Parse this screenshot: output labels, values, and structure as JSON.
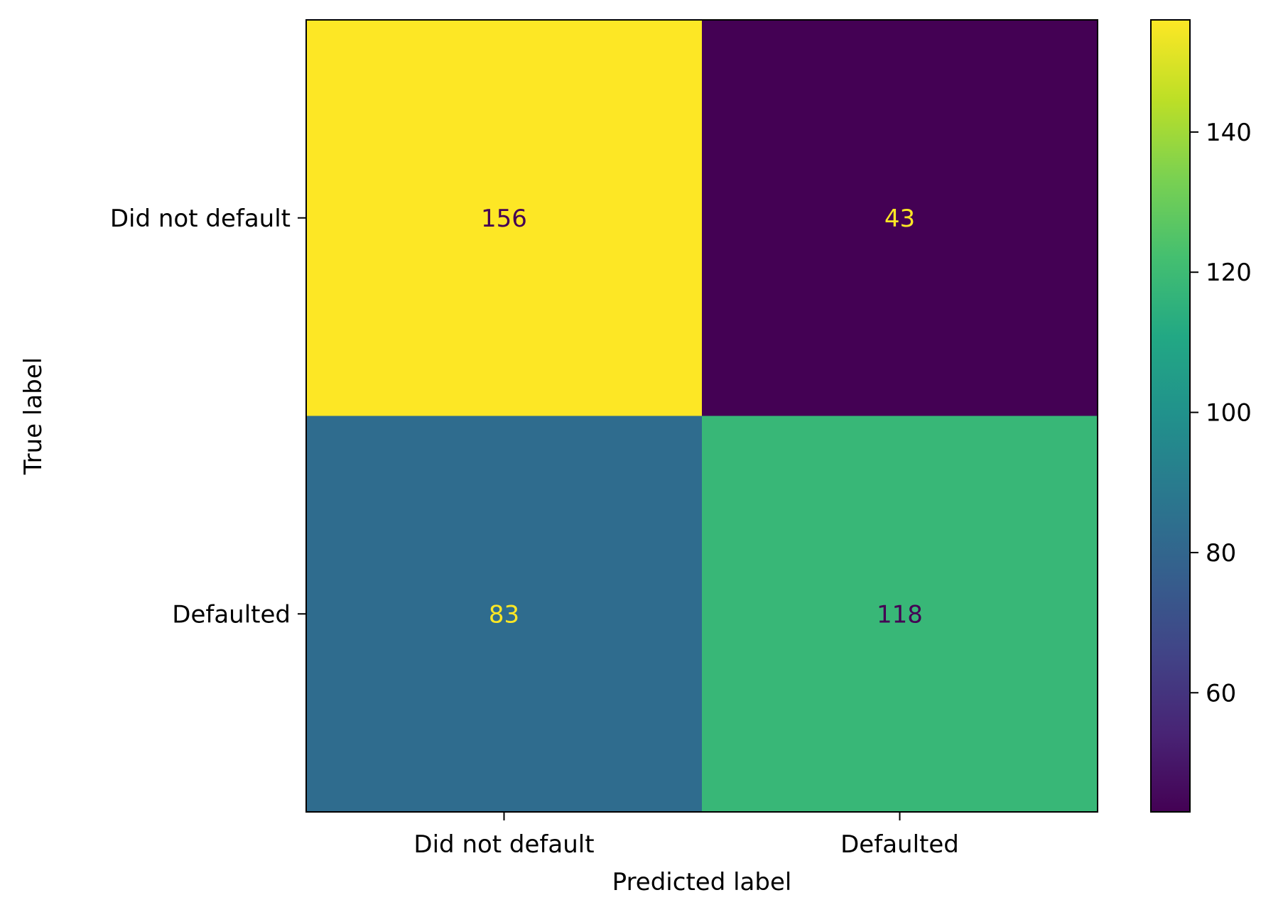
{
  "chart_data": {
    "type": "heatmap",
    "title": "",
    "xlabel": "Predicted label",
    "ylabel": "True label",
    "x_categories": [
      "Did not default",
      "Defaulted"
    ],
    "y_categories": [
      "Did not default",
      "Defaulted"
    ],
    "matrix": [
      [
        156,
        43
      ],
      [
        83,
        118
      ]
    ],
    "colorbar": {
      "colormap": "viridis",
      "range": [
        43,
        156
      ],
      "ticks": [
        60,
        80,
        100,
        120,
        140
      ]
    },
    "cell_text_colors": {
      "on_dark": "#fde725",
      "on_light": "#440154"
    }
  }
}
